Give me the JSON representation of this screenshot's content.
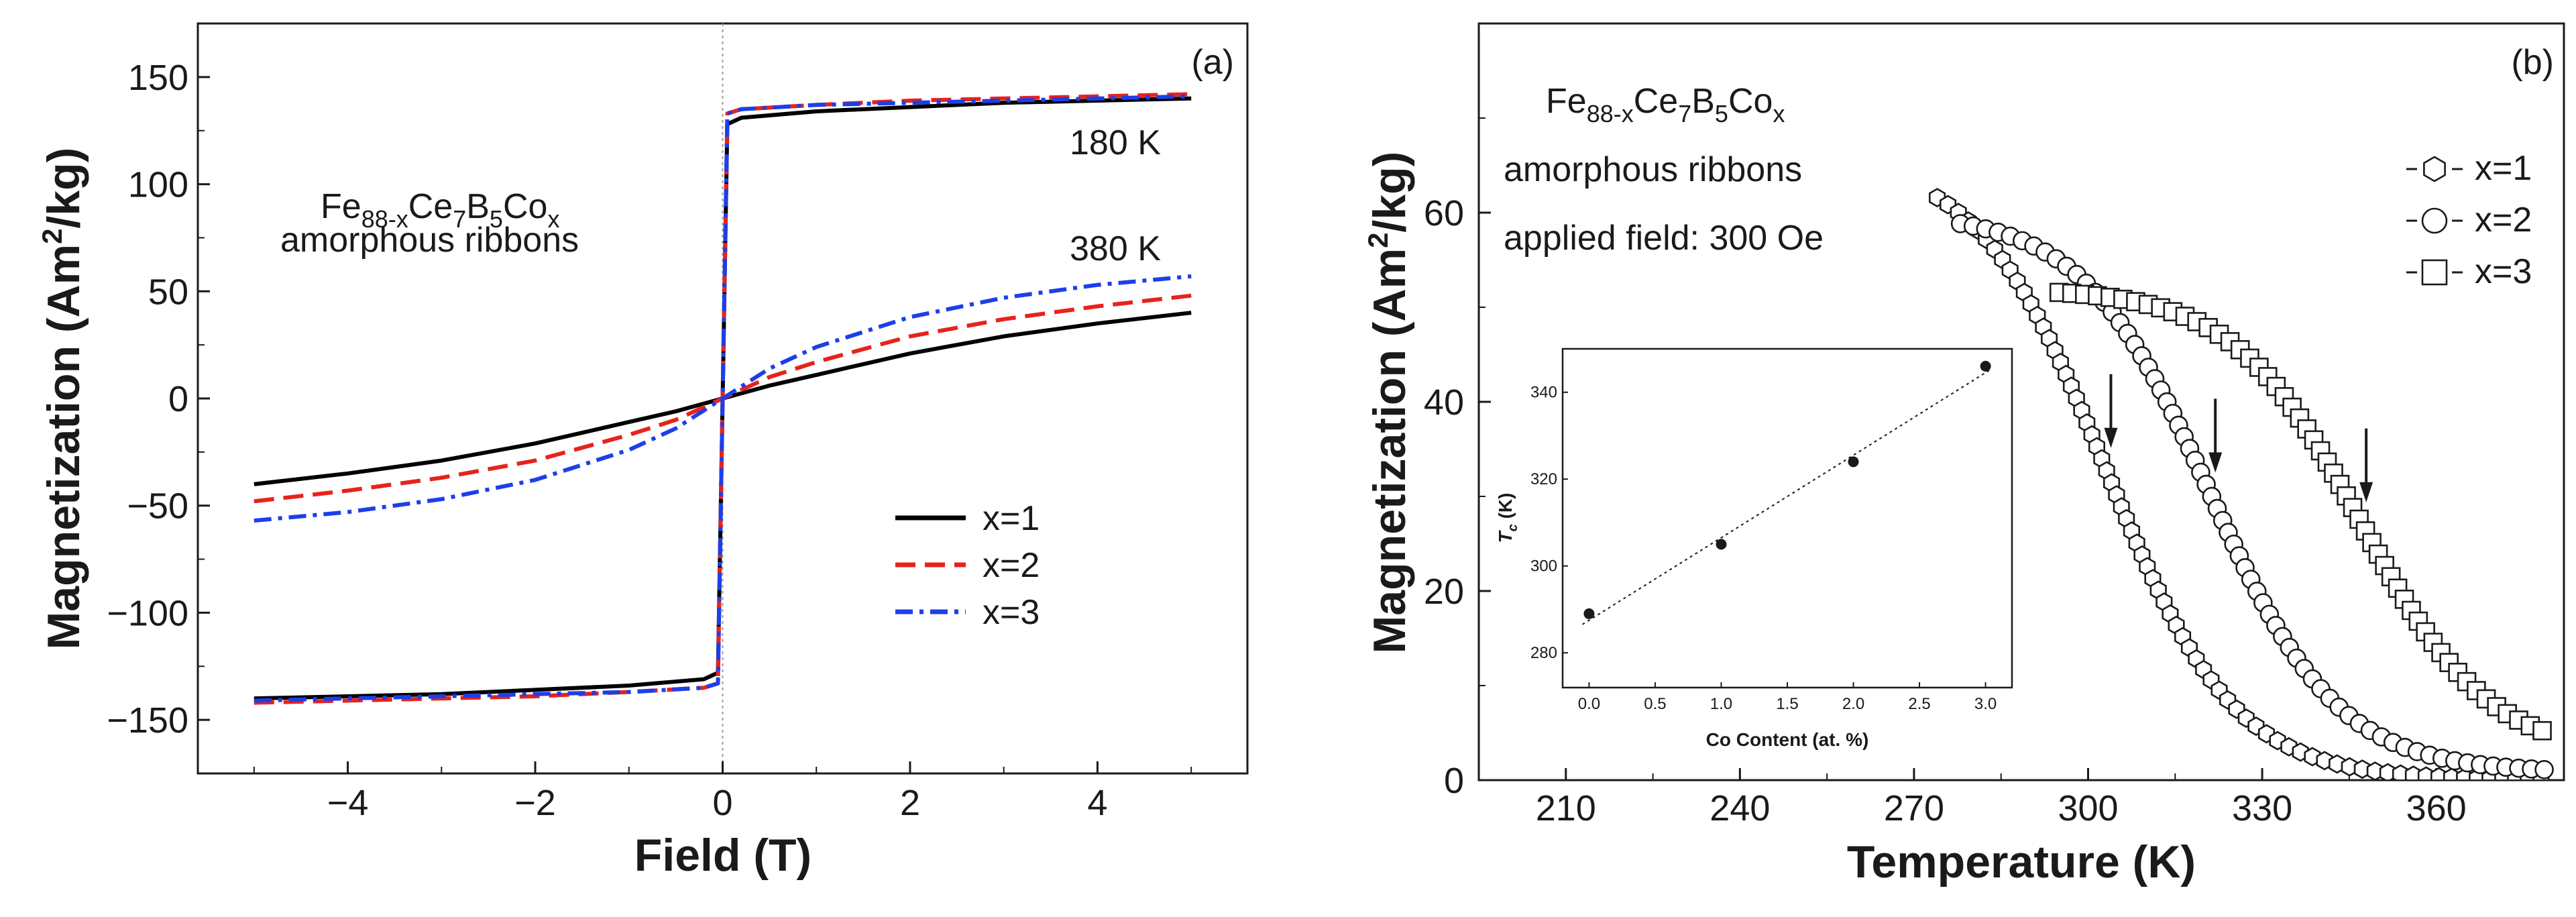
{
  "chart_data": [
    {
      "panel_label": "(a)",
      "type": "line",
      "title": "",
      "xlabel": "Field (T)",
      "ylabel_parts": [
        "Magnetization (Am",
        "2",
        "/kg)"
      ],
      "xlim": [
        -5.6,
        5.6
      ],
      "ylim": [
        -175,
        175
      ],
      "xticks": [
        -4,
        -2,
        0,
        2,
        4
      ],
      "xtick_labels": [
        "−4",
        "−2",
        "0",
        "2",
        "4"
      ],
      "yticks": [
        -150,
        -100,
        -50,
        0,
        50,
        100,
        150
      ],
      "ytick_labels": [
        "−150",
        "−100",
        "−50",
        "0",
        "50",
        "100",
        "150"
      ],
      "composition": {
        "a": "Fe",
        "a_sub": "88-x",
        "b": "Ce",
        "b_sub": "7",
        "c": "B",
        "c_sub": "5",
        "d": "Co",
        "d_sub": "x"
      },
      "sample_label": "amorphous ribbons",
      "temp_labels": [
        "180 K",
        "380 K"
      ],
      "legend_position": "lower-right",
      "series": [
        {
          "name": "x=1",
          "color": "#000000",
          "dash": "solid",
          "low_T": {
            "x": [
              -5,
              -4,
              -3,
              -2,
              -1,
              -0.2,
              -0.05,
              0,
              0.05,
              0.2,
              1,
              2,
              3,
              4,
              5
            ],
            "y": [
              -140,
              -139,
              -138,
              -136,
              -134,
              -131,
              -128,
              0,
              128,
              131,
              134,
              136,
              138,
              139,
              140
            ]
          },
          "high_T": {
            "x": [
              -5,
              -4,
              -3,
              -2,
              -1,
              -0.5,
              0,
              0.5,
              1,
              2,
              3,
              4,
              5
            ],
            "y": [
              -40,
              -35,
              -29,
              -21,
              -11,
              -6,
              0,
              6,
              11,
              21,
              29,
              35,
              40
            ]
          }
        },
        {
          "name": "x=2",
          "color": "#e8221c",
          "dash": "dash",
          "low_T": {
            "x": [
              -5,
              -4,
              -3,
              -2,
              -1,
              -0.2,
              -0.05,
              0,
              0.05,
              0.2,
              1,
              2,
              3,
              4,
              5
            ],
            "y": [
              -142,
              -141,
              -140,
              -139,
              -137,
              -135,
              -133,
              0,
              133,
              135,
              137,
              139,
              140,
              141,
              142
            ]
          },
          "high_T": {
            "x": [
              -5,
              -4,
              -3,
              -2,
              -1,
              -0.5,
              0,
              0.5,
              1,
              2,
              3,
              4,
              5
            ],
            "y": [
              -48,
              -43,
              -37,
              -29,
              -17,
              -10,
              0,
              10,
              17,
              29,
              37,
              43,
              48
            ]
          }
        },
        {
          "name": "x=3",
          "color": "#1c3fe8",
          "dash": "dashdot",
          "low_T": {
            "x": [
              -5,
              -4,
              -3,
              -2,
              -1,
              -0.2,
              -0.05,
              0,
              0.05,
              0.2,
              1,
              2,
              3,
              4,
              5
            ],
            "y": [
              -141,
              -140,
              -139,
              -138,
              -137,
              -135,
              -133,
              0,
              133,
              135,
              137,
              138,
              139,
              140,
              141
            ]
          },
          "high_T": {
            "x": [
              -5,
              -4,
              -3,
              -2,
              -1,
              -0.5,
              0,
              0.5,
              1,
              2,
              3,
              4,
              5
            ],
            "y": [
              -57,
              -53,
              -47,
              -38,
              -24,
              -14,
              0,
              14,
              24,
              38,
              47,
              53,
              57
            ]
          }
        }
      ]
    },
    {
      "panel_label": "(b)",
      "type": "scatter",
      "title": "",
      "xlabel": "Temperature (K)",
      "ylabel_parts": [
        "Magnetization (Am",
        "2",
        "/kg)"
      ],
      "xlim": [
        195,
        382
      ],
      "ylim": [
        0,
        80
      ],
      "xticks": [
        210,
        240,
        270,
        300,
        330,
        360
      ],
      "xtick_labels": [
        "210",
        "240",
        "270",
        "300",
        "330",
        "360"
      ],
      "yticks": [
        0,
        20,
        40,
        60
      ],
      "ytick_labels": [
        "0",
        "20",
        "40",
        "60"
      ],
      "composition": {
        "a": "Fe",
        "a_sub": "88-x",
        "b": "Ce",
        "b_sub": "7",
        "c": "B",
        "c_sub": "5",
        "d": "Co",
        "d_sub": "x"
      },
      "sample_label": "amorphous ribbons",
      "field_label": "applied field: 300 Oe",
      "legend_position": "top-right",
      "series": [
        {
          "name": "x=1",
          "marker": "hexagon",
          "x_start": 274,
          "x_end": 380,
          "Tc": 303,
          "width": 11,
          "floor": 0,
          "mag_at_Tc": 33
        },
        {
          "name": "x=2",
          "marker": "circle",
          "x_start": 278,
          "x_end": 380,
          "Tc": 321,
          "width": 11,
          "floor": 0.8,
          "mag_at_Tc": 30
        },
        {
          "name": "x=3",
          "marker": "square",
          "x_start": 295,
          "x_end": 380,
          "Tc": 347,
          "width": 11,
          "floor": 2.5,
          "mag_at_Tc": 26
        }
      ],
      "arrows_at_Tc": [
        303,
        321,
        347
      ],
      "inset": {
        "type": "scatter",
        "xlabel": "Co Content (at. %)",
        "ylabel": "T",
        "ylabel_sub": "c",
        "ylabel_unit": " (K)",
        "xlim": [
          -0.2,
          3.2
        ],
        "ylim": [
          272,
          350
        ],
        "xticks": [
          0.0,
          0.5,
          1.0,
          1.5,
          2.0,
          2.5,
          3.0
        ],
        "xtick_labels": [
          "0.0",
          "0.5",
          "1.0",
          "1.5",
          "2.0",
          "2.5",
          "3.0"
        ],
        "yticks": [
          280,
          300,
          320,
          340
        ],
        "ytick_labels": [
          "280",
          "300",
          "320",
          "340"
        ],
        "x": [
          0,
          1,
          2,
          3
        ],
        "y": [
          289,
          305,
          324,
          346
        ]
      }
    }
  ]
}
